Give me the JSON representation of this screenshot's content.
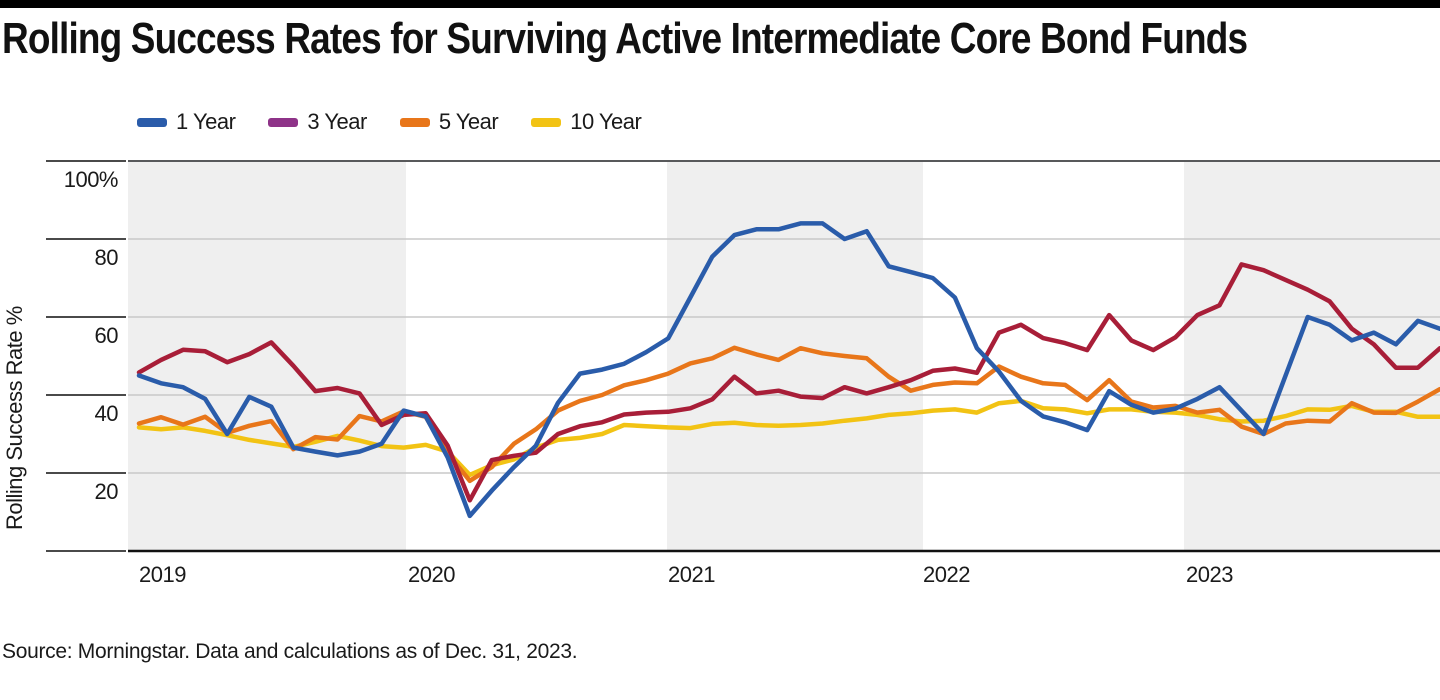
{
  "page": {
    "top_bar_color": "#000000",
    "background": "#ffffff"
  },
  "title": "Rolling Success Rates for Surviving Active Intermediate Core Bond Funds",
  "source": "Source: Morningstar. Data and calculations as of Dec. 31, 2023.",
  "chart_data": {
    "type": "line",
    "title": "Rolling Success Rates for Surviving Active Intermediate Core Bond Funds",
    "ylabel": "Rolling Success Rate %",
    "xlabel": "",
    "x_unit": "month",
    "x_start": "2019-01",
    "x_end": "2023-12",
    "x_tick_labels": [
      "2019",
      "2020",
      "2021",
      "2022",
      "2023"
    ],
    "y_ticks": [
      20,
      40,
      60,
      80,
      100
    ],
    "y_tick_labels": [
      "20",
      "40",
      "60",
      "80",
      "100%"
    ],
    "ylim": [
      0,
      100
    ],
    "grid": "horizontal",
    "legend_position": "top-left",
    "band_color_odd": "#efefef",
    "band_color_even": "#ffffff",
    "gridline_color": "#c8c8c8",
    "plot_top_border_color": "#58595b",
    "axis_color": "#111111",
    "series": [
      {
        "name": "1 Year",
        "color": "#2a5caa",
        "legend_color": "#2a5caa",
        "values": [
          45,
          43,
          42,
          39,
          30,
          39.5,
          37,
          26.5,
          25.5,
          24.5,
          25.5,
          27.5,
          36,
          34.5,
          24,
          9,
          15.5,
          21.5,
          27,
          38,
          45.5,
          46.5,
          48,
          51,
          54.5,
          65,
          75.5,
          81,
          82.5,
          82.5,
          84,
          84,
          80,
          82,
          73,
          71.5,
          70,
          65,
          52,
          46,
          38.5,
          34.5,
          33,
          31,
          41,
          37.5,
          35.5,
          36.5,
          39,
          42,
          36,
          30,
          45,
          60,
          58,
          54,
          56,
          53,
          59,
          57
        ]
      },
      {
        "name": "3 Year",
        "color": "#a81e38",
        "legend_color": "#8e3388",
        "values": [
          45.8,
          49,
          51.6,
          51.2,
          48.4,
          50.5,
          53.5,
          47.5,
          41,
          41.8,
          40.4,
          32.3,
          34.9,
          35.3,
          27,
          13,
          23.3,
          24.4,
          25.2,
          30,
          32,
          33,
          35,
          35.5,
          35.7,
          36.6,
          38.9,
          44.7,
          40.4,
          41.1,
          39.6,
          39.2,
          42,
          40.4,
          42,
          43.8,
          46.2,
          46.8,
          45.7,
          56,
          58,
          54.6,
          53.3,
          51.5,
          60.5,
          54,
          51.5,
          54.8,
          60.5,
          63,
          73.5,
          72,
          69.5,
          67,
          64,
          57,
          53,
          47,
          47,
          52
        ]
      },
      {
        "name": "5 Year",
        "color": "#e8761a",
        "legend_color": "#e8761a",
        "values": [
          32.7,
          34.3,
          32.4,
          34.4,
          30.3,
          32.1,
          33.3,
          26.1,
          29.2,
          28.6,
          34.6,
          33.2,
          35.8,
          34.4,
          25,
          18,
          21.5,
          27.5,
          31.2,
          36,
          38.5,
          40,
          42.5,
          43.8,
          45.5,
          48.1,
          49.4,
          52.1,
          50.4,
          49,
          52,
          50.7,
          50,
          49.4,
          44.7,
          41.1,
          42.6,
          43.2,
          43,
          47.3,
          44.7,
          43,
          42.6,
          38.7,
          43.8,
          38.3,
          36.8,
          37.2,
          35.5,
          36.2,
          31.9,
          30,
          32.7,
          33.4,
          33.2,
          37.9,
          35.5,
          35.4,
          38.3,
          41.5
        ]
      },
      {
        "name": "10 Year",
        "color": "#f2c314",
        "legend_color": "#f2c314",
        "values": [
          31.7,
          31.2,
          31.7,
          30.8,
          29.7,
          28.5,
          27.6,
          26.7,
          28,
          29.5,
          28.3,
          26.9,
          26.5,
          27.2,
          25.5,
          19.5,
          22,
          23.5,
          26.5,
          28.5,
          29,
          30,
          32.3,
          32,
          31.7,
          31.5,
          32.6,
          32.9,
          32.3,
          32.1,
          32.3,
          32.7,
          33.4,
          34,
          34.9,
          35.3,
          36,
          36.3,
          35.5,
          37.9,
          38.5,
          36.6,
          36.3,
          35.3,
          36.3,
          36.3,
          35.7,
          35.5,
          34.9,
          33.8,
          33.2,
          33.4,
          34.6,
          36.3,
          36.2,
          37.2,
          35.7,
          35.7,
          34.4,
          34.4
        ]
      }
    ]
  }
}
